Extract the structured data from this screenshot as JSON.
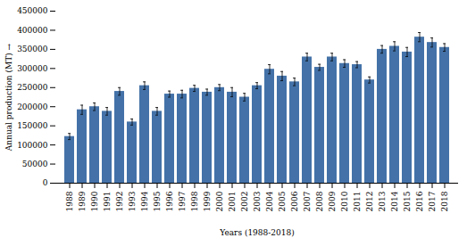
{
  "chart_data": {
    "type": "bar",
    "categories": [
      "1988",
      "1989",
      "1990",
      "1991",
      "1992",
      "1993",
      "1994",
      "1995",
      "1996",
      "1997",
      "1998",
      "1999",
      "2000",
      "2001",
      "2002",
      "2003",
      "2004",
      "2005",
      "2006",
      "2007",
      "2008",
      "2009",
      "2010",
      "2011",
      "2012",
      "2013",
      "2014",
      "2015",
      "2016",
      "2017",
      "2018"
    ],
    "values": [
      122000,
      192000,
      200000,
      188000,
      240000,
      160000,
      255000,
      188000,
      233000,
      233000,
      248000,
      238000,
      250000,
      238000,
      225000,
      255000,
      298000,
      280000,
      265000,
      330000,
      303000,
      330000,
      313000,
      310000,
      270000,
      350000,
      358000,
      343000,
      382000,
      368000,
      355000
    ],
    "errors": [
      8000,
      12000,
      10000,
      10000,
      10000,
      8000,
      10000,
      10000,
      8000,
      10000,
      8000,
      8000,
      8000,
      12000,
      10000,
      8000,
      12000,
      12000,
      10000,
      10000,
      8000,
      10000,
      10000,
      8000,
      8000,
      10000,
      12000,
      12000,
      12000,
      12000,
      10000
    ],
    "color": "#4472a8",
    "xlabel": "Years (1988-2018)",
    "ylabel": "Annual production (MT)",
    "ylim": [
      0,
      450000
    ],
    "yticks": [
      0,
      50000,
      100000,
      150000,
      200000,
      250000,
      300000,
      350000,
      400000,
      450000
    ]
  }
}
